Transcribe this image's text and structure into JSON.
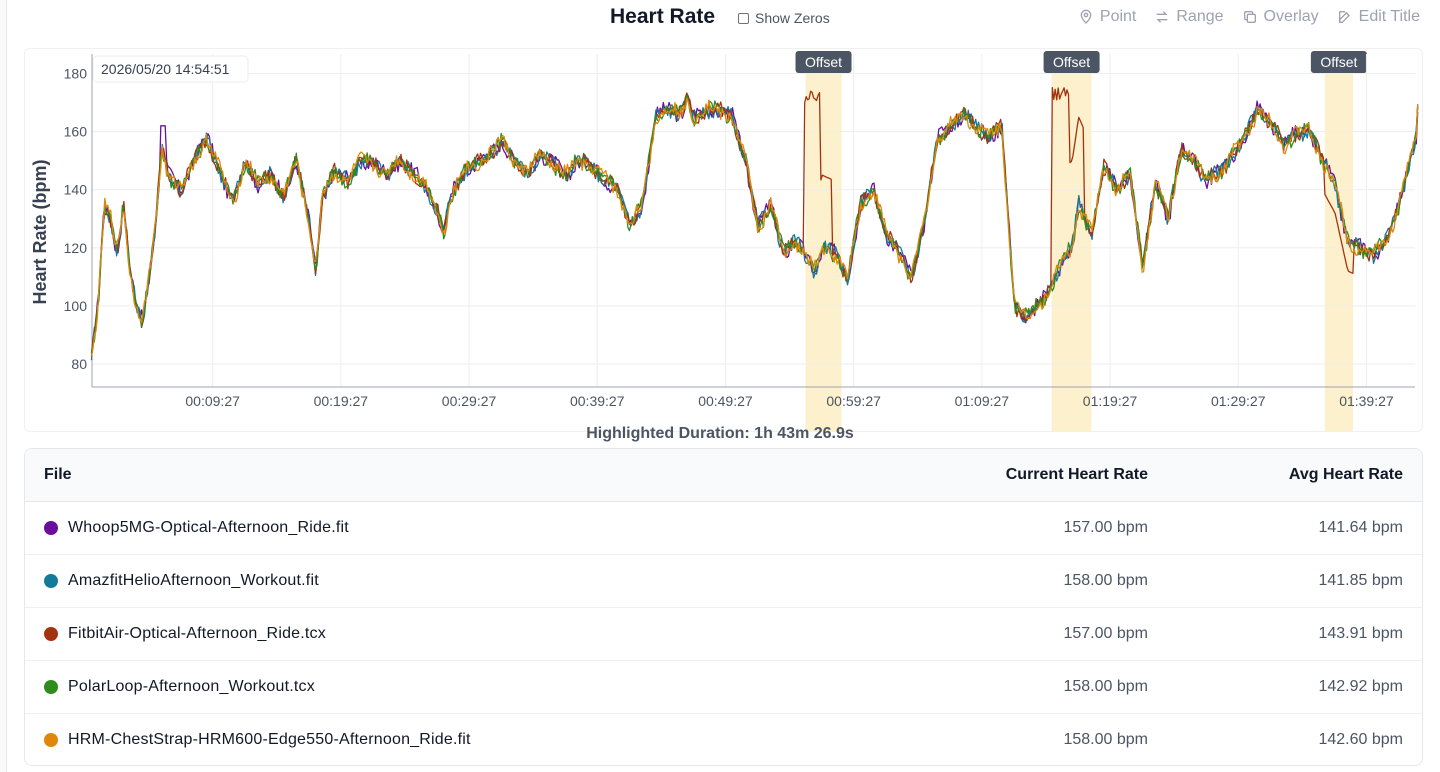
{
  "header": {
    "title": "Heart Rate",
    "show_zeros_label": "Show Zeros",
    "tools": [
      {
        "label": "Point",
        "icon": "map-pin-icon"
      },
      {
        "label": "Range",
        "icon": "arrows-exchange-icon"
      },
      {
        "label": "Overlay",
        "icon": "copy-icon"
      },
      {
        "label": "Edit Title",
        "icon": "edit-icon"
      }
    ]
  },
  "chart": {
    "timestamp": "2026/05/20 14:54:51",
    "offset_label": "Offset",
    "highlighted_duration": "Highlighted Duration: 1h 43m 26.9s"
  },
  "chart_data": {
    "type": "line",
    "title": "",
    "xlabel": "",
    "ylabel": "Heart Rate (bpm)",
    "ylim": [
      72,
      180
    ],
    "x_ticks": [
      "00:09:27",
      "00:19:27",
      "00:29:27",
      "00:39:27",
      "00:49:27",
      "00:59:27",
      "01:09:27",
      "01:19:27",
      "01:29:27",
      "01:39:27"
    ],
    "x_tick_minutes": [
      9.45,
      19.45,
      29.45,
      39.45,
      49.45,
      59.45,
      69.45,
      79.45,
      89.45,
      99.45
    ],
    "x_range_minutes": [
      0,
      103.45
    ],
    "y_ticks": [
      80,
      100,
      120,
      140,
      160,
      180
    ],
    "grid": true,
    "offset_regions_minutes": [
      [
        55.7,
        58.5
      ],
      [
        74.9,
        78.0
      ],
      [
        96.2,
        98.4
      ]
    ],
    "base_curve": {
      "x_minutes": [
        0,
        0.5,
        1,
        1.5,
        2,
        2.5,
        3,
        3.5,
        4,
        4.5,
        5,
        5.5,
        6,
        7,
        8,
        9,
        10,
        11,
        12,
        13,
        14,
        15,
        16,
        17,
        17.5,
        18,
        19,
        20,
        21,
        22,
        23,
        24,
        25,
        26,
        27,
        27.5,
        28,
        29,
        30,
        31,
        32,
        33,
        34,
        35,
        36,
        37,
        38,
        39,
        40,
        41,
        42,
        43,
        44,
        45,
        46,
        46.5,
        47,
        48,
        49,
        50,
        51,
        52,
        53,
        54,
        55,
        56,
        56.5,
        57,
        58,
        59,
        60,
        61,
        62,
        63,
        64,
        65,
        66,
        67,
        68,
        69,
        70,
        71,
        72,
        73,
        74,
        75,
        76,
        76.5,
        77,
        78,
        79,
        80,
        81,
        82,
        83,
        84,
        85,
        86,
        87,
        88,
        89,
        90,
        91,
        92,
        93,
        94,
        95,
        96,
        97,
        98,
        99,
        100,
        101,
        102,
        103.4
      ],
      "bpm": [
        82,
        100,
        135,
        130,
        118,
        135,
        112,
        100,
        95,
        110,
        128,
        155,
        145,
        140,
        150,
        158,
        147,
        135,
        150,
        142,
        145,
        138,
        150,
        128,
        112,
        138,
        146,
        143,
        150,
        149,
        145,
        150,
        146,
        142,
        132,
        125,
        138,
        146,
        149,
        152,
        157,
        150,
        146,
        152,
        149,
        145,
        150,
        148,
        144,
        140,
        128,
        135,
        165,
        168,
        166,
        171,
        165,
        168,
        167,
        165,
        150,
        127,
        135,
        118,
        122,
        115,
        112,
        120,
        118,
        110,
        135,
        140,
        125,
        118,
        110,
        130,
        158,
        162,
        166,
        162,
        158,
        162,
        100,
        96,
        101,
        108,
        118,
        120,
        135,
        125,
        148,
        140,
        146,
        113,
        143,
        130,
        154,
        150,
        143,
        146,
        152,
        158,
        168,
        163,
        155,
        160,
        160,
        150,
        142,
        122,
        120,
        118,
        122,
        135,
        160,
        168
      ]
    },
    "series": [
      {
        "name": "Whoop5MG-Optical-Afternoon_Ride.fit",
        "color": "#6a0f9c"
      },
      {
        "name": "AmazfitHelioAfternoon_Workout.fit",
        "color": "#137a9a"
      },
      {
        "name": "FitbitAir-Optical-Afternoon_Ride.tcx",
        "color": "#a3330f"
      },
      {
        "name": "PolarLoop-Afternoon_Workout.tcx",
        "color": "#2e8b1e"
      },
      {
        "name": "HRM-ChestStrap-HRM600-Edge550-Afternoon_Ride.fit",
        "color": "#e0870b"
      }
    ]
  },
  "table": {
    "columns": [
      "File",
      "Current Heart Rate",
      "Avg Heart Rate"
    ],
    "rows": [
      {
        "file": "Whoop5MG-Optical-Afternoon_Ride.fit",
        "color": "#6a0f9c",
        "current": "157.00 bpm",
        "avg": "141.64 bpm"
      },
      {
        "file": "AmazfitHelioAfternoon_Workout.fit",
        "color": "#137a9a",
        "current": "158.00 bpm",
        "avg": "141.85 bpm"
      },
      {
        "file": "FitbitAir-Optical-Afternoon_Ride.tcx",
        "color": "#a3330f",
        "current": "157.00 bpm",
        "avg": "143.91 bpm"
      },
      {
        "file": "PolarLoop-Afternoon_Workout.tcx",
        "color": "#2e8b1e",
        "current": "158.00 bpm",
        "avg": "142.92 bpm"
      },
      {
        "file": "HRM-ChestStrap-HRM600-Edge550-Afternoon_Ride.fit",
        "color": "#e0870b",
        "current": "158.00 bpm",
        "avg": "142.60 bpm"
      }
    ]
  }
}
